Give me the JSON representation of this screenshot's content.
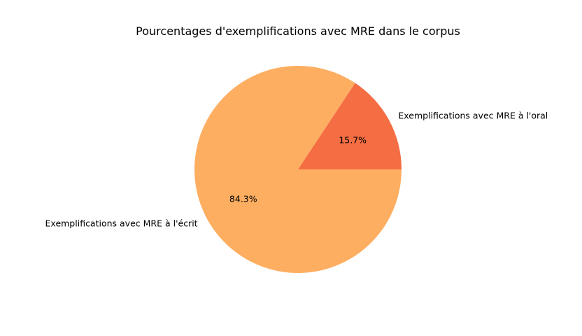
{
  "chart_data": {
    "type": "pie",
    "title": "Pourcentages d'exemplifications avec MRE dans le corpus",
    "slices": [
      {
        "label": "Exemplifications avec MRE à l'oral",
        "value": 15.7,
        "pct_label": "15.7%",
        "color": "#f46d43"
      },
      {
        "label": "Exemplifications avec MRE à l'écrit",
        "value": 84.3,
        "pct_label": "84.3%",
        "color": "#fdae61"
      }
    ],
    "start_angle_deg": 0,
    "direction": "counterclockwise",
    "legend": "none"
  }
}
